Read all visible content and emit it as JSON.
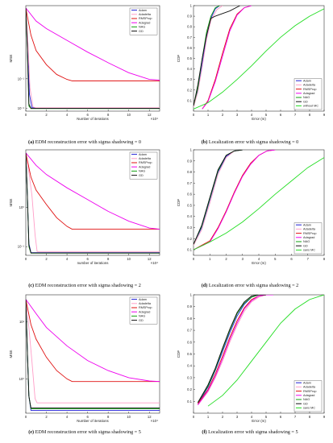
{
  "captions": [
    {
      "tag": "(a)",
      "text": "EDM reconstruction error with sigma shadowing = 0"
    },
    {
      "tag": "(b)",
      "text": "Localization error with sigma shadowing = 0"
    },
    {
      "tag": "(c)",
      "text": "EDM reconstruction error with sigma shadowing = 2"
    },
    {
      "tag": "(d)",
      "text": "Localization error with sigma shadowing = 2"
    },
    {
      "tag": "(e)",
      "text": "EDM reconstruction error with sigma shadowing = 5"
    },
    {
      "tag": "(f)",
      "text": "Localization error with sigma shadowing = 5"
    }
  ],
  "chart_data": [
    {
      "type": "line",
      "ylabel": "MSE",
      "xlabel": "Number of iterations",
      "x_multiplier": "×10⁴",
      "xlim": [
        0,
        13
      ],
      "xticks": [
        0,
        2,
        4,
        6,
        8,
        10,
        12
      ],
      "yscale": "log",
      "ylim": [
        0.008,
        30
      ],
      "ytick_labels": [
        {
          "v": 0.01,
          "t": "10⁻²"
        },
        {
          "v": 0.1,
          "t": "10⁻¹"
        }
      ],
      "legend_pos": "top-right",
      "series": [
        {
          "name": "Adam",
          "color": "#1f1fd6",
          "x": [
            0,
            0.15,
            0.35,
            0.6,
            1,
            13
          ],
          "y": [
            25,
            1.5,
            0.03,
            0.0105,
            0.0102,
            0.0102
          ]
        },
        {
          "name": "Adadelta",
          "color": "#ff9ec8",
          "x": [
            0,
            0.2,
            0.4,
            0.7,
            1,
            13
          ],
          "y": [
            25,
            2,
            0.05,
            0.011,
            0.0104,
            0.0104
          ]
        },
        {
          "name": "RMSProp",
          "color": "#e01010",
          "x": [
            0,
            0.5,
            1,
            2,
            3,
            4,
            4.5,
            13
          ],
          "y": [
            25,
            3,
            0.9,
            0.3,
            0.14,
            0.095,
            0.085,
            0.085
          ]
        },
        {
          "name": "Adagrad",
          "color": "#ee00ee",
          "x": [
            0,
            1,
            2,
            4,
            6,
            8,
            10,
            12,
            13
          ],
          "y": [
            25,
            9,
            5,
            2,
            0.8,
            0.35,
            0.16,
            0.095,
            0.09
          ]
        },
        {
          "name": "NAG",
          "color": "#11a011",
          "x": [
            0,
            0.15,
            0.3,
            0.5,
            13
          ],
          "y": [
            25,
            1,
            0.012,
            0.0098,
            0.0098
          ]
        },
        {
          "name": "GD",
          "color": "#111111",
          "x": [
            0,
            0.15,
            0.3,
            0.5,
            13
          ],
          "y": [
            25,
            1.2,
            0.014,
            0.0099,
            0.0099
          ]
        }
      ]
    },
    {
      "type": "line",
      "ylabel": "CDF",
      "xlabel": "Error (m)",
      "xlim": [
        0,
        9
      ],
      "xticks": [
        0,
        1,
        2,
        3,
        4,
        5,
        6,
        7,
        8,
        9
      ],
      "ylim": [
        0,
        1
      ],
      "yticks": [
        0.1,
        0.2,
        0.3,
        0.4,
        0.5,
        0.6,
        0.7,
        0.8,
        0.9,
        1
      ],
      "legend_pos": "bottom-right",
      "series": [
        {
          "name": "Adam",
          "color": "#1f1fd6",
          "x": [
            0,
            0.3,
            0.6,
            0.9,
            1.2,
            1.5,
            1.8
          ],
          "y": [
            0.05,
            0.2,
            0.45,
            0.7,
            0.88,
            0.97,
            1
          ]
        },
        {
          "name": "Adadelta",
          "color": "#ff9ec8",
          "x": [
            0,
            0.3,
            0.6,
            0.9,
            1.2,
            1.6,
            2
          ],
          "y": [
            0.04,
            0.18,
            0.42,
            0.68,
            0.86,
            0.96,
            1
          ]
        },
        {
          "name": "RMSProp",
          "color": "#e01010",
          "x": [
            0.6,
            1,
            1.5,
            2,
            2.5,
            3,
            3.5,
            4
          ],
          "y": [
            0.02,
            0.1,
            0.3,
            0.55,
            0.78,
            0.92,
            0.98,
            1
          ]
        },
        {
          "name": "Adagrad",
          "color": "#ee00ee",
          "x": [
            0.6,
            1,
            1.5,
            2,
            2.5,
            3,
            3.5,
            4
          ],
          "y": [
            0.02,
            0.09,
            0.28,
            0.52,
            0.76,
            0.91,
            0.98,
            1
          ]
        },
        {
          "name": "NAG",
          "color": "#11a011",
          "x": [
            0,
            0.3,
            0.6,
            0.9,
            1.2,
            1.5,
            1.8
          ],
          "y": [
            0.05,
            0.22,
            0.5,
            0.75,
            0.9,
            0.98,
            1
          ]
        },
        {
          "name": "GD",
          "color": "#111111",
          "x": [
            0,
            0.3,
            0.6,
            0.9,
            1.2,
            1.5,
            2.5,
            3.2
          ],
          "y": [
            0.05,
            0.25,
            0.5,
            0.72,
            0.88,
            0.9,
            0.95,
            1
          ]
        },
        {
          "name": "without MC",
          "color": "#22dd22",
          "x": [
            0,
            1,
            2,
            3,
            4,
            5,
            6,
            7,
            8,
            9
          ],
          "y": [
            0.02,
            0.08,
            0.18,
            0.3,
            0.43,
            0.57,
            0.7,
            0.81,
            0.9,
            0.97
          ]
        }
      ]
    },
    {
      "type": "line",
      "ylabel": "MSE",
      "xlabel": "number of iterations",
      "x_multiplier": "×10⁴",
      "xlim": [
        0,
        13
      ],
      "xticks": [
        0,
        2,
        4,
        6,
        8,
        10,
        12
      ],
      "yscale": "log",
      "ylim": [
        0.06,
        30
      ],
      "ytick_labels": [
        {
          "v": 1,
          "t": "10⁰"
        },
        {
          "v": 0.1,
          "t": "10⁻¹"
        }
      ],
      "legend_pos": "top-right",
      "series": [
        {
          "name": "Adam",
          "color": "#1f1fd6",
          "x": [
            0,
            0.15,
            0.3,
            0.5,
            13
          ],
          "y": [
            25,
            2,
            0.12,
            0.07,
            0.07
          ]
        },
        {
          "name": "Adadelta",
          "color": "#ff9ec8",
          "x": [
            0,
            0.3,
            0.6,
            0.9,
            1.1,
            13
          ],
          "y": [
            25,
            8,
            2,
            0.2,
            0.075,
            0.075
          ]
        },
        {
          "name": "RMSProp",
          "color": "#e01010",
          "x": [
            0,
            0.5,
            1,
            2,
            3,
            4,
            4.5,
            13
          ],
          "y": [
            25,
            6,
            2.8,
            1.2,
            0.55,
            0.33,
            0.28,
            0.28
          ]
        },
        {
          "name": "Adagrad",
          "color": "#ee00ee",
          "x": [
            0,
            1,
            2,
            4,
            6,
            8,
            10,
            12,
            13
          ],
          "y": [
            25,
            12,
            7,
            3.2,
            1.6,
            0.8,
            0.45,
            0.3,
            0.28
          ]
        },
        {
          "name": "NAG",
          "color": "#11a011",
          "x": [
            0,
            0.15,
            0.3,
            0.5,
            13
          ],
          "y": [
            25,
            2,
            0.1,
            0.068,
            0.068
          ]
        },
        {
          "name": "GD",
          "color": "#111111",
          "x": [
            0,
            0.15,
            0.3,
            0.5,
            13
          ],
          "y": [
            25,
            2.2,
            0.11,
            0.069,
            0.069
          ]
        }
      ]
    },
    {
      "type": "line",
      "ylabel": "CDF",
      "xlabel": "Error (m)",
      "xlim": [
        0,
        8
      ],
      "xticks": [
        0,
        1,
        2,
        3,
        4,
        5,
        6,
        7,
        8
      ],
      "ylim": [
        0.05,
        1
      ],
      "yticks": [
        0.1,
        0.2,
        0.3,
        0.4,
        0.5,
        0.6,
        0.7,
        0.8,
        0.9,
        1
      ],
      "legend_pos": "bottom-right",
      "series": [
        {
          "name": "Adam",
          "color": "#1f1fd6",
          "x": [
            0,
            0.5,
            1,
            1.5,
            2,
            2.5,
            3
          ],
          "y": [
            0.15,
            0.3,
            0.55,
            0.8,
            0.94,
            0.99,
            1
          ]
        },
        {
          "name": "Adadelta",
          "color": "#ff9ec8",
          "x": [
            0,
            0.5,
            1,
            1.5,
            2,
            2.5,
            3
          ],
          "y": [
            0.14,
            0.28,
            0.52,
            0.78,
            0.93,
            0.99,
            1
          ]
        },
        {
          "name": "RMSProp",
          "color": "#e01010",
          "x": [
            0,
            1,
            1.5,
            2,
            2.5,
            3,
            3.5,
            4,
            4.5,
            5
          ],
          "y": [
            0.1,
            0.18,
            0.3,
            0.45,
            0.62,
            0.77,
            0.88,
            0.95,
            0.99,
            1
          ]
        },
        {
          "name": "Adagrad",
          "color": "#ee00ee",
          "x": [
            0,
            1,
            1.5,
            2,
            2.5,
            3,
            3.5,
            4,
            4.5,
            5
          ],
          "y": [
            0.1,
            0.17,
            0.29,
            0.44,
            0.61,
            0.76,
            0.87,
            0.95,
            0.99,
            1
          ]
        },
        {
          "name": "NAG",
          "color": "#11a011",
          "x": [
            0,
            0.5,
            1,
            1.5,
            2,
            2.5,
            3
          ],
          "y": [
            0.15,
            0.31,
            0.56,
            0.81,
            0.95,
            0.99,
            1
          ]
        },
        {
          "name": "GD",
          "color": "#111111",
          "x": [
            0,
            0.5,
            1,
            1.5,
            2,
            2.5,
            3
          ],
          "y": [
            0.15,
            0.32,
            0.57,
            0.82,
            0.95,
            0.99,
            1
          ]
        },
        {
          "name": "sans MC",
          "color": "#22dd22",
          "x": [
            0,
            1,
            2,
            3,
            4,
            5,
            6,
            7,
            8
          ],
          "y": [
            0.1,
            0.17,
            0.25,
            0.35,
            0.47,
            0.6,
            0.72,
            0.84,
            0.93
          ]
        }
      ]
    },
    {
      "type": "line",
      "ylabel": "MSE",
      "xlabel": "Number of iterations",
      "x_multiplier": "×10⁴",
      "xlim": [
        0,
        13
      ],
      "xticks": [
        0,
        2,
        4,
        6,
        8,
        10,
        12
      ],
      "yscale": "log",
      "ylim": [
        0.25,
        30
      ],
      "ytick_labels": [
        {
          "v": 1,
          "t": "10⁰"
        },
        {
          "v": 10,
          "t": "10¹"
        }
      ],
      "legend_pos": "top-right",
      "series": [
        {
          "name": "Adam",
          "color": "#1f1fd6",
          "x": [
            0,
            0.15,
            0.3,
            0.5,
            13
          ],
          "y": [
            25,
            3,
            0.5,
            0.28,
            0.28
          ]
        },
        {
          "name": "Adadelta",
          "color": "#ff9ec8",
          "x": [
            0,
            0.3,
            0.6,
            0.9,
            1.1,
            13
          ],
          "y": [
            25,
            8,
            2,
            0.45,
            0.38,
            0.38
          ]
        },
        {
          "name": "RMSProp",
          "color": "#e01010",
          "x": [
            0,
            0.5,
            1,
            2,
            3,
            4,
            4.5,
            13
          ],
          "y": [
            25,
            9,
            5,
            2.4,
            1.4,
            1,
            0.9,
            0.9
          ]
        },
        {
          "name": "Adagrad",
          "color": "#ee00ee",
          "x": [
            0,
            1,
            2,
            4,
            6,
            8,
            10,
            12,
            13
          ],
          "y": [
            25,
            14,
            8,
            3.8,
            2.1,
            1.4,
            1.05,
            0.92,
            0.9
          ]
        },
        {
          "name": "NAG",
          "color": "#11a011",
          "x": [
            0,
            0.15,
            0.3,
            0.5,
            13
          ],
          "y": [
            25,
            3,
            0.5,
            0.3,
            0.3
          ]
        },
        {
          "name": "GD",
          "color": "#111111",
          "x": [
            0,
            0.15,
            0.3,
            0.5,
            13
          ],
          "y": [
            25,
            3.2,
            0.5,
            0.31,
            0.31
          ]
        }
      ]
    },
    {
      "type": "line",
      "ylabel": "CDF",
      "xlabel": "Error (m)",
      "xlim": [
        0,
        9
      ],
      "xticks": [
        0,
        1,
        2,
        3,
        4,
        5,
        6,
        7,
        8,
        9
      ],
      "ylim": [
        0,
        1
      ],
      "yticks": [
        0.1,
        0.2,
        0.3,
        0.4,
        0.5,
        0.6,
        0.7,
        0.8,
        0.9,
        1
      ],
      "legend_pos": "bottom-right",
      "series": [
        {
          "name": "Adam",
          "color": "#1f1fd6",
          "x": [
            0.3,
            1,
            1.5,
            2,
            2.5,
            3,
            3.5,
            4,
            4.5,
            5
          ],
          "y": [
            0.08,
            0.22,
            0.36,
            0.52,
            0.68,
            0.82,
            0.92,
            0.98,
            1,
            1
          ]
        },
        {
          "name": "Adadelta",
          "color": "#ff9ec8",
          "x": [
            0.3,
            1,
            1.5,
            2,
            2.5,
            3,
            3.5,
            4,
            4.5,
            5,
            5.5
          ],
          "y": [
            0.07,
            0.18,
            0.3,
            0.44,
            0.6,
            0.74,
            0.86,
            0.94,
            0.98,
            1,
            1
          ]
        },
        {
          "name": "RMSProp",
          "color": "#e01010",
          "x": [
            0.3,
            1,
            1.5,
            2,
            2.5,
            3,
            3.5,
            4,
            4.5,
            5,
            5.5
          ],
          "y": [
            0.08,
            0.2,
            0.33,
            0.48,
            0.64,
            0.78,
            0.89,
            0.96,
            0.99,
            1,
            1
          ]
        },
        {
          "name": "Adagrad",
          "color": "#ee00ee",
          "x": [
            0.3,
            1,
            1.5,
            2,
            2.5,
            3,
            3.5,
            4,
            4.5,
            5,
            5.5
          ],
          "y": [
            0.07,
            0.19,
            0.31,
            0.46,
            0.62,
            0.76,
            0.88,
            0.95,
            0.99,
            1,
            1
          ]
        },
        {
          "name": "NAG",
          "color": "#11a011",
          "x": [
            0.3,
            1,
            1.5,
            2,
            2.5,
            3,
            3.5,
            4,
            4.5,
            5
          ],
          "y": [
            0.09,
            0.23,
            0.37,
            0.54,
            0.7,
            0.84,
            0.93,
            0.98,
            1,
            1
          ]
        },
        {
          "name": "GD",
          "color": "#111111",
          "x": [
            0.3,
            1,
            1.5,
            2,
            2.5,
            3,
            3.5,
            4,
            4.5,
            5
          ],
          "y": [
            0.09,
            0.24,
            0.38,
            0.55,
            0.71,
            0.85,
            0.94,
            0.99,
            1,
            1
          ]
        },
        {
          "name": "sans MC",
          "color": "#22dd22",
          "x": [
            1,
            2,
            3,
            4,
            5,
            6,
            7,
            8,
            9
          ],
          "y": [
            0.06,
            0.15,
            0.28,
            0.44,
            0.6,
            0.76,
            0.88,
            0.96,
            1
          ]
        }
      ]
    }
  ]
}
